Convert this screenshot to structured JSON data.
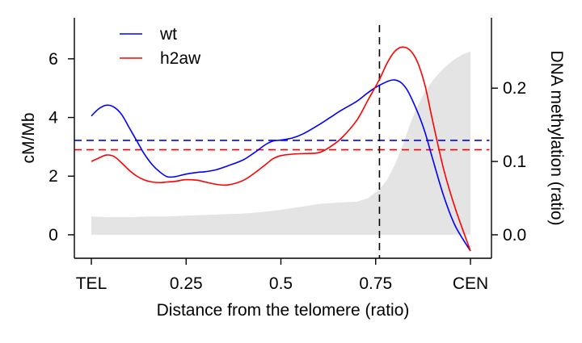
{
  "chart_data": {
    "type": "line",
    "xlabel": "Distance from the telomere (ratio)",
    "ylabel_left": "cM/Mb",
    "ylabel_right": "DNA methylation (ratio)",
    "xlim": [
      0,
      1
    ],
    "ylim_left": [
      -0.8,
      7.4
    ],
    "ylim_right": [
      -0.032,
      0.296
    ],
    "x_ticks": [
      {
        "value": 0,
        "label": "TEL"
      },
      {
        "value": 0.25,
        "label": "0.25"
      },
      {
        "value": 0.5,
        "label": "0.5"
      },
      {
        "value": 0.75,
        "label": "0.75"
      },
      {
        "value": 1,
        "label": "CEN"
      }
    ],
    "y_left_ticks": [
      {
        "value": 0,
        "label": "0"
      },
      {
        "value": 2,
        "label": "2"
      },
      {
        "value": 4,
        "label": "4"
      },
      {
        "value": 6,
        "label": "6"
      }
    ],
    "y_right_ticks": [
      {
        "value": 0,
        "label": "0.0"
      },
      {
        "value": 0.1,
        "label": "0.1"
      },
      {
        "value": 0.2,
        "label": "0.2"
      }
    ],
    "legend_position": "top-left",
    "vertical_line_x": 0.76,
    "series": [
      {
        "name": "wt",
        "color": "#0000ff",
        "axis": "left",
        "x": [
          0,
          0.02,
          0.04,
          0.06,
          0.08,
          0.1,
          0.12,
          0.14,
          0.16,
          0.18,
          0.2,
          0.22,
          0.25,
          0.28,
          0.3,
          0.33,
          0.36,
          0.4,
          0.43,
          0.46,
          0.48,
          0.5,
          0.53,
          0.56,
          0.6,
          0.63,
          0.66,
          0.7,
          0.73,
          0.76,
          0.8,
          0.83,
          0.86,
          0.88,
          0.9,
          0.93,
          0.96,
          1.0
        ],
        "y": [
          4.05,
          4.3,
          4.42,
          4.35,
          4.1,
          3.65,
          3.2,
          2.75,
          2.4,
          2.15,
          1.98,
          1.98,
          2.07,
          2.13,
          2.15,
          2.22,
          2.35,
          2.55,
          2.8,
          3.08,
          3.2,
          3.23,
          3.3,
          3.45,
          3.75,
          4.0,
          4.25,
          4.55,
          4.85,
          5.1,
          5.28,
          5.0,
          4.2,
          3.5,
          2.6,
          1.3,
          0.3,
          -0.55
        ]
      },
      {
        "name": "h2aw",
        "color": "#ff0000",
        "axis": "left",
        "x": [
          0,
          0.02,
          0.04,
          0.06,
          0.08,
          0.1,
          0.12,
          0.14,
          0.16,
          0.18,
          0.2,
          0.22,
          0.25,
          0.28,
          0.3,
          0.33,
          0.36,
          0.4,
          0.43,
          0.46,
          0.48,
          0.5,
          0.53,
          0.56,
          0.6,
          0.63,
          0.66,
          0.7,
          0.73,
          0.76,
          0.78,
          0.8,
          0.82,
          0.84,
          0.86,
          0.88,
          0.9,
          0.93,
          0.96,
          1.0
        ],
        "y": [
          2.5,
          2.62,
          2.72,
          2.67,
          2.45,
          2.2,
          2.0,
          1.87,
          1.8,
          1.78,
          1.8,
          1.82,
          1.88,
          1.86,
          1.8,
          1.72,
          1.7,
          1.85,
          2.1,
          2.4,
          2.6,
          2.7,
          2.75,
          2.77,
          2.8,
          3.0,
          3.3,
          3.9,
          4.6,
          5.3,
          5.85,
          6.25,
          6.4,
          6.3,
          5.9,
          5.1,
          3.9,
          2.2,
          0.9,
          -0.55
        ]
      },
      {
        "name": "wt mean",
        "color": "#0000ff",
        "style": "dashed",
        "axis": "left",
        "x": [
          -0.05,
          1.05
        ],
        "y": [
          3.22,
          3.22
        ]
      },
      {
        "name": "h2aw mean",
        "color": "#ff0000",
        "style": "dashed",
        "axis": "left",
        "x": [
          -0.05,
          1.05
        ],
        "y": [
          2.9,
          2.9
        ]
      },
      {
        "name": "DNA methylation",
        "type": "area",
        "color": "#e4e4e4",
        "axis": "right",
        "x": [
          0,
          0.05,
          0.1,
          0.15,
          0.2,
          0.25,
          0.3,
          0.35,
          0.4,
          0.45,
          0.5,
          0.55,
          0.6,
          0.65,
          0.7,
          0.73,
          0.76,
          0.78,
          0.8,
          0.82,
          0.84,
          0.86,
          0.88,
          0.9,
          0.92,
          0.94,
          0.96,
          0.98,
          1.0
        ],
        "y": [
          0.025,
          0.024,
          0.024,
          0.025,
          0.025,
          0.026,
          0.027,
          0.028,
          0.029,
          0.031,
          0.034,
          0.038,
          0.042,
          0.044,
          0.045,
          0.05,
          0.062,
          0.075,
          0.095,
          0.12,
          0.15,
          0.175,
          0.195,
          0.21,
          0.222,
          0.232,
          0.24,
          0.246,
          0.25
        ]
      }
    ]
  }
}
